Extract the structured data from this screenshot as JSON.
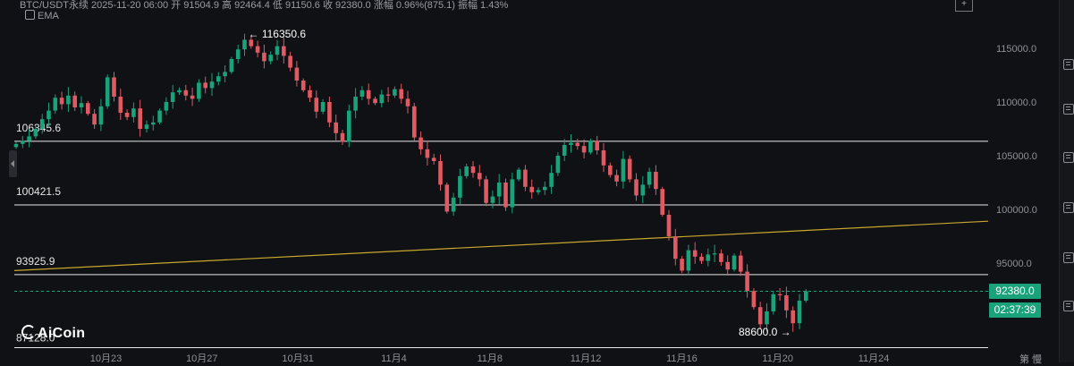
{
  "header": {
    "text": "BTC/USDT永续  2025-11-20 06:00  开 91504.9  高 92464.4  低 91150.6  收 92380.0  涨幅 0.96%(875.1)  振幅 1.43%",
    "ema_label": "EMA"
  },
  "logo_text": "AiCoin",
  "corner_text": "第  慢",
  "current": {
    "price": "92380.0",
    "countdown": "02:37:39"
  },
  "colors": {
    "up": "#1aa27a",
    "down": "#e05a63",
    "bg": "#101114",
    "level": "#e8e8e8",
    "trend": "#c9a72e",
    "accent": "#1aa27a"
  },
  "chart_data": {
    "type": "candlestick",
    "y_axis": {
      "min": 86000,
      "max": 118000,
      "ticks": [
        "115000.0",
        "110000.0",
        "105000.0",
        "100000.0",
        "95000.0"
      ]
    },
    "x_axis": {
      "ticks": [
        "10月23",
        "10月27",
        "10月31",
        "11月4",
        "11月8",
        "11月12",
        "11月16",
        "11月20",
        "11月24"
      ]
    },
    "levels": [
      {
        "price": 106345.6,
        "label": "106345.6"
      },
      {
        "price": 100421.5,
        "label": "100421.5"
      },
      {
        "price": 93925.9,
        "label": "93925.9"
      },
      {
        "price": 87128.0,
        "label": "87128.0"
      }
    ],
    "trendline": {
      "from": {
        "date": "10月20",
        "price": 94300
      },
      "to": {
        "date": "11月27",
        "price": 98900
      }
    },
    "annotations": [
      {
        "label": "← 116350.6",
        "price": 116350.6
      },
      {
        "label": "88600.0 →",
        "price": 88600.0
      }
    ],
    "last_price": 92380.0,
    "close_path": [
      106100,
      106400,
      106800,
      107500,
      108400,
      109200,
      110400,
      109800,
      110600,
      109500,
      109900,
      108900,
      107900,
      109600,
      112300,
      110500,
      109000,
      108600,
      109400,
      107500,
      107900,
      108100,
      109200,
      110000,
      110900,
      111100,
      110600,
      110300,
      111800,
      111300,
      111900,
      112400,
      112800,
      114000,
      114900,
      115800,
      115200,
      114600,
      113800,
      114400,
      115200,
      114300,
      113200,
      112000,
      111100,
      110400,
      109100,
      110000,
      108100,
      107100,
      106300,
      109200,
      110500,
      111100,
      110300,
      109900,
      110700,
      110600,
      111200,
      110300,
      109600,
      106700,
      105600,
      104800,
      104500,
      102300,
      99800,
      101100,
      103100,
      104000,
      103400,
      102800,
      100600,
      101200,
      102500,
      100200,
      102800,
      103700,
      102100,
      101600,
      101800,
      102100,
      103400,
      105000,
      106000,
      106200,
      105900,
      105300,
      106400,
      105500,
      104100,
      103200,
      102600,
      104700,
      102800,
      101300,
      102300,
      103500,
      101900,
      99500,
      97500,
      95400,
      94300,
      96200,
      95600,
      95200,
      95800,
      95900,
      95100,
      94400,
      95700,
      94200,
      92400,
      90900,
      89300,
      90500,
      92100,
      92000,
      90600,
      89400,
      91500,
      92380
    ]
  }
}
